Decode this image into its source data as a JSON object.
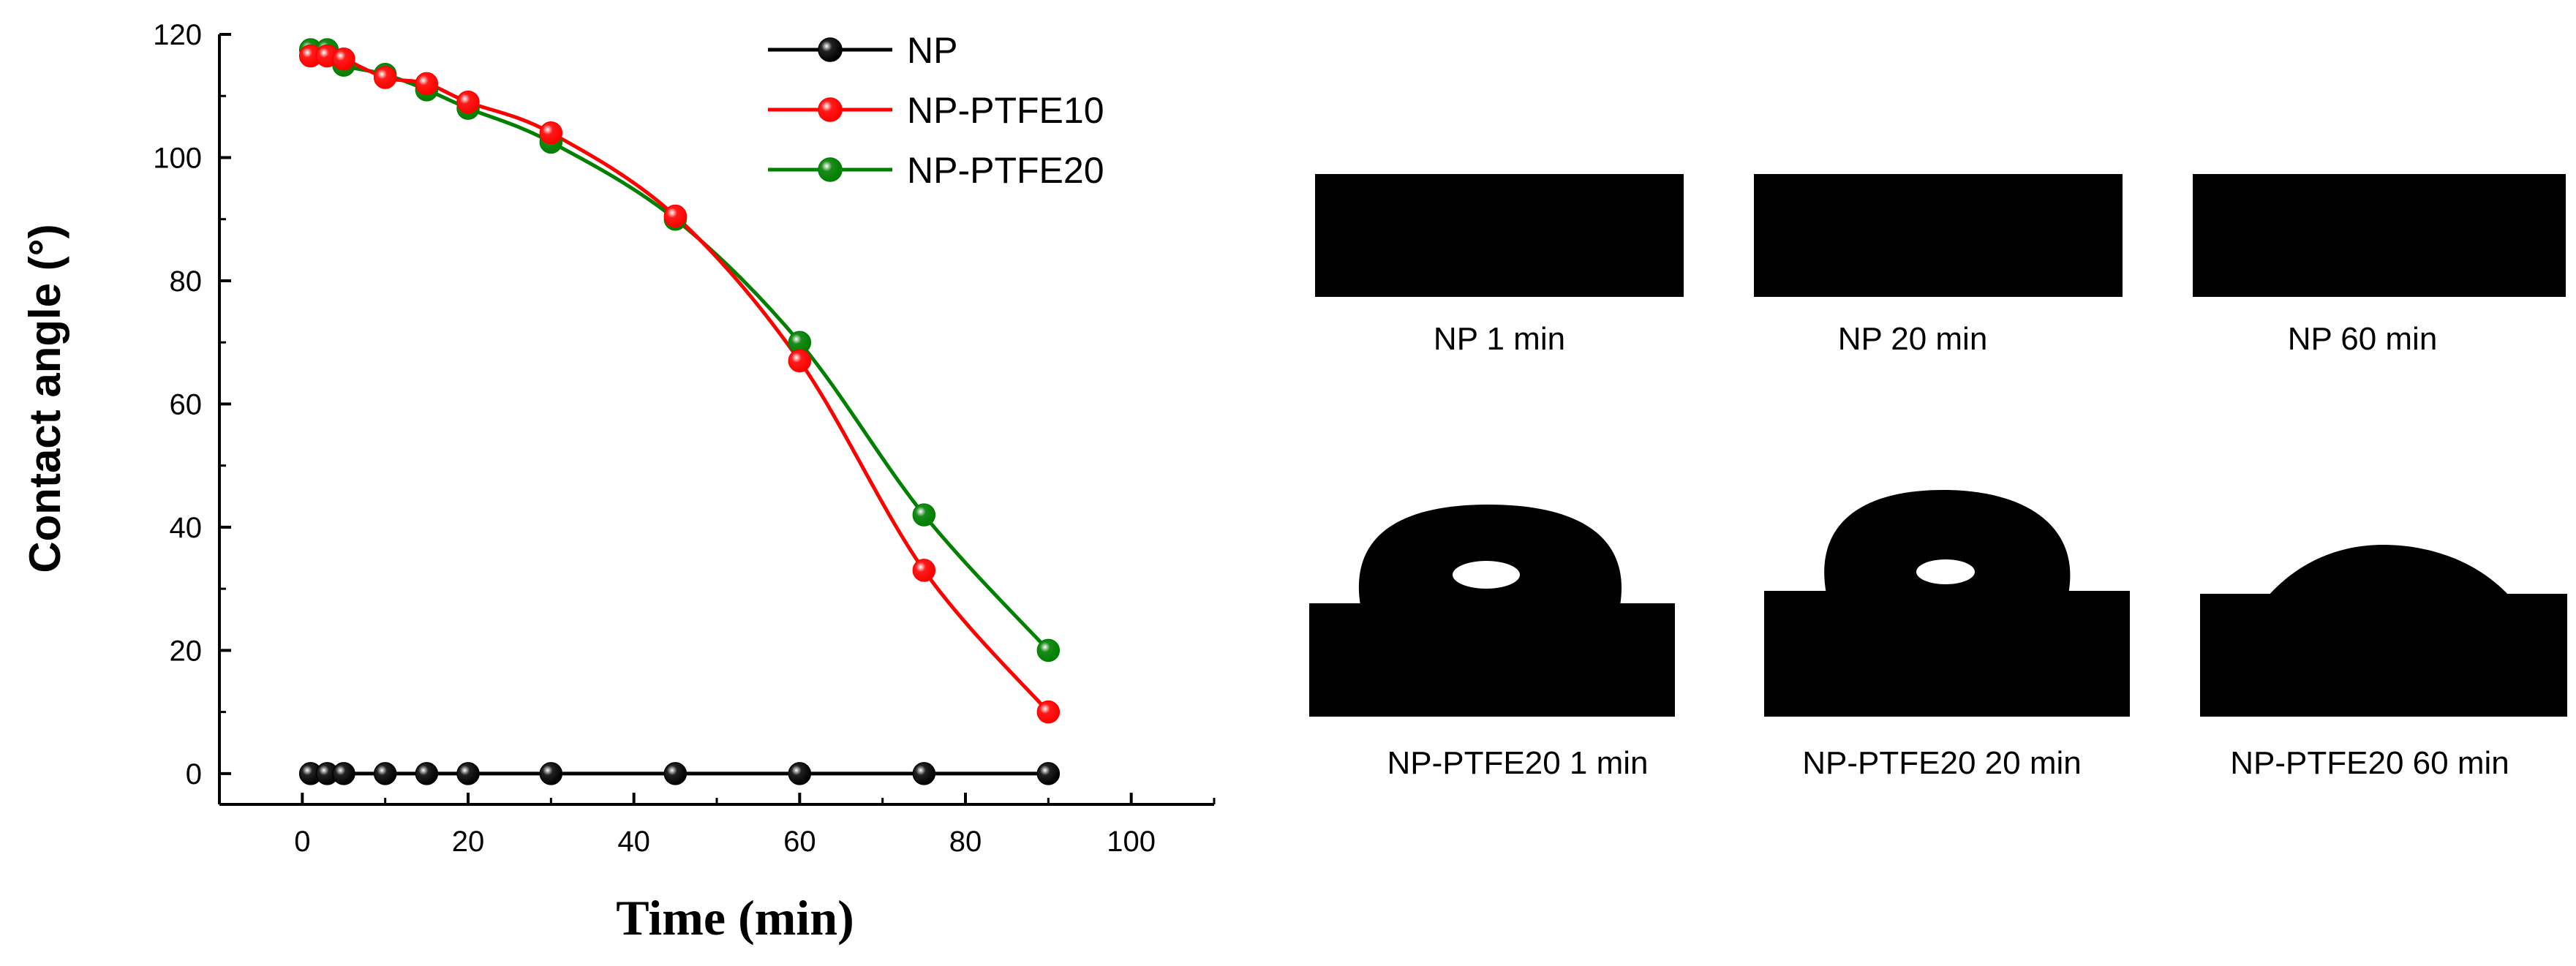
{
  "chart_data": {
    "type": "line",
    "xlabel": "Time (min)",
    "ylabel": "Contact angle (°)",
    "xlim": [
      -10,
      110
    ],
    "ylim": [
      -5,
      120
    ],
    "xticks": [
      0,
      20,
      40,
      60,
      80,
      100
    ],
    "yticks": [
      0,
      20,
      40,
      60,
      80,
      100,
      120
    ],
    "legend_position": "top-center",
    "series": [
      {
        "name": "NP",
        "color": "#000000",
        "marker_color": "#222222",
        "x": [
          1,
          3,
          5,
          10,
          15,
          20,
          30,
          45,
          60,
          75,
          90
        ],
        "y": [
          0,
          0,
          0,
          0,
          0,
          0,
          0,
          0,
          0,
          0,
          0
        ]
      },
      {
        "name": "NP-PTFE10",
        "color": "#ff0000",
        "marker_color": "#ff1a1a",
        "x": [
          1,
          3,
          5,
          10,
          15,
          20,
          30,
          45,
          60,
          75,
          90
        ],
        "y": [
          116.5,
          116.5,
          116,
          113,
          112,
          109,
          104,
          90.5,
          67,
          33,
          10
        ]
      },
      {
        "name": "NP-PTFE20",
        "color": "#008000",
        "marker_color": "#1a8a1a",
        "x": [
          1,
          3,
          5,
          10,
          15,
          20,
          30,
          45,
          60,
          75,
          90
        ],
        "y": [
          117.5,
          117.5,
          115,
          113.5,
          111,
          108,
          102.5,
          90,
          70,
          42,
          20
        ]
      }
    ]
  },
  "images": {
    "captions": [
      "NP 1 min",
      "NP 20 min",
      "NP 60 min",
      "NP-PTFE20 1 min",
      "NP-PTFE20 20 min",
      "NP-PTFE20 60 min"
    ]
  }
}
